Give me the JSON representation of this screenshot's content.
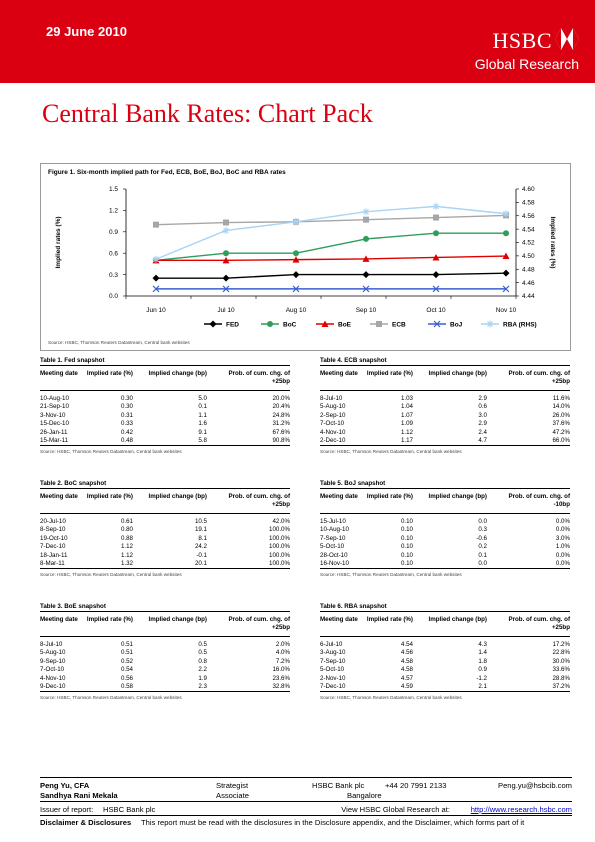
{
  "header": {
    "date": "29 June 2010",
    "brand": "HSBC",
    "unit": "Global Research",
    "logo_icon": "hsbc-hexagon-icon",
    "brand_color": "#db0011"
  },
  "page_title": "Central Bank Rates: Chart Pack",
  "figure": {
    "title": "Figure 1. Six-month implied path for Fed, ECB, BoE, BoJ, BoC and RBA rates",
    "source": "Source: HSBC, Thomson Reuters Datastream, Central bank websites",
    "chart_data": {
      "type": "line",
      "categories": [
        "Jun 10",
        "Jul 10",
        "Aug 10",
        "Sep 10",
        "Oct 10",
        "Nov 10"
      ],
      "ylabel": "Implied rates (%)",
      "ylabel_right": "Implied rates (%)",
      "ylim": [
        0,
        1.5
      ],
      "yticks": [
        "0.0",
        "0.3",
        "0.6",
        "0.9",
        "1.2",
        "1.5"
      ],
      "ylim_right": [
        4.44,
        4.6
      ],
      "yticks_right": [
        "4.44",
        "4.46",
        "4.48",
        "4.50",
        "4.52",
        "4.54",
        "4.56",
        "4.58",
        "4.60"
      ],
      "grid": false,
      "legend_position": "bottom",
      "series": [
        {
          "name": "FED",
          "color": "#000000",
          "marker": "diamond",
          "axis": "left",
          "values": [
            0.25,
            0.25,
            0.3,
            0.3,
            0.3,
            0.32
          ]
        },
        {
          "name": "BoC",
          "color": "#2e9e5b",
          "marker": "circle",
          "axis": "left",
          "values": [
            0.5,
            0.6,
            0.6,
            0.8,
            0.88,
            0.88
          ]
        },
        {
          "name": "BoE",
          "color": "#e00000",
          "marker": "triangle",
          "axis": "left",
          "values": [
            0.5,
            0.5,
            0.51,
            0.52,
            0.54,
            0.56
          ]
        },
        {
          "name": "ECB",
          "color": "#a6a6a6",
          "marker": "square",
          "axis": "left",
          "values": [
            1.0,
            1.03,
            1.04,
            1.07,
            1.1,
            1.13
          ]
        },
        {
          "name": "BoJ",
          "color": "#3a5fcd",
          "marker": "x",
          "axis": "left",
          "values": [
            0.1,
            0.1,
            0.1,
            0.1,
            0.1,
            0.1
          ]
        },
        {
          "name": "RBA (RHS)",
          "color": "#a9d4f5",
          "marker": "star",
          "axis": "right",
          "values": [
            4.495,
            4.538,
            4.551,
            4.566,
            4.574,
            4.563
          ]
        }
      ]
    }
  },
  "tables": [
    {
      "title": "Table 1. Fed snapshot",
      "headers": [
        "Meeting date",
        "Implied rate (%)",
        "Implied change (bp)",
        "Prob. of cum. chg. of +25bp"
      ],
      "rows": [
        [
          "10-Aug-10",
          "0.30",
          "5.0",
          "20.0%"
        ],
        [
          "21-Sep-10",
          "0.30",
          "0.1",
          "20.4%"
        ],
        [
          "3-Nov-10",
          "0.31",
          "1.1",
          "24.8%"
        ],
        [
          "15-Dec-10",
          "0.33",
          "1.6",
          "31.2%"
        ],
        [
          "26-Jan-11",
          "0.42",
          "9.1",
          "67.6%"
        ],
        [
          "15-Mar-11",
          "0.48",
          "5.8",
          "90.8%"
        ]
      ],
      "source": "Source: HSBC, Thomson Reuters Datastream, Central bank websites"
    },
    {
      "title": "Table 4. ECB snapshot",
      "headers": [
        "Meeting date",
        "Implied rate (%)",
        "Implied change (bp)",
        "Prob. of cum. chg. of +25bp"
      ],
      "rows": [
        [
          "8-Jul-10",
          "1.03",
          "2.9",
          "11.6%"
        ],
        [
          "5-Aug-10",
          "1.04",
          "0.6",
          "14.0%"
        ],
        [
          "2-Sep-10",
          "1.07",
          "3.0",
          "26.0%"
        ],
        [
          "7-Oct-10",
          "1.09",
          "2.9",
          "37.6%"
        ],
        [
          "4-Nov-10",
          "1.12",
          "2.4",
          "47.2%"
        ],
        [
          "2-Dec-10",
          "1.17",
          "4.7",
          "66.0%"
        ]
      ],
      "source": "Source: HSBC, Thomson Reuters Datastream, Central bank websites"
    },
    {
      "title": "Table 2. BoC snapshot",
      "headers": [
        "Meeting date",
        "Implied rate (%)",
        "Implied change (bp)",
        "Prob. of cum. chg. of +25bp"
      ],
      "rows": [
        [
          "20-Jul-10",
          "0.61",
          "10.5",
          "42.0%"
        ],
        [
          "8-Sep-10",
          "0.80",
          "19.1",
          "100.0%"
        ],
        [
          "19-Oct-10",
          "0.88",
          "8.1",
          "100.0%"
        ],
        [
          "7-Dec-10",
          "1.12",
          "24.2",
          "100.0%"
        ],
        [
          "18-Jan-11",
          "1.12",
          "-0.1",
          "100.0%"
        ],
        [
          "8-Mar-11",
          "1.32",
          "20.1",
          "100.0%"
        ]
      ],
      "source": "Source: HSBC, Thomson Reuters Datastream, Central bank websites"
    },
    {
      "title": "Table 5. BoJ snapshot",
      "headers": [
        "Meeting date",
        "Implied rate (%)",
        "Implied change (bp)",
        "Prob. of cum. chg. of -10bp"
      ],
      "rows": [
        [
          "15-Jul-10",
          "0.10",
          "0.0",
          "0.0%"
        ],
        [
          "10-Aug-10",
          "0.10",
          "0.3",
          "0.0%"
        ],
        [
          "7-Sep-10",
          "0.10",
          "-0.6",
          "3.0%"
        ],
        [
          "5-Oct-10",
          "0.10",
          "0.2",
          "1.0%"
        ],
        [
          "28-Oct-10",
          "0.10",
          "0.1",
          "0.0%"
        ],
        [
          "16-Nov-10",
          "0.10",
          "0.0",
          "0.0%"
        ]
      ],
      "source": "Source: HSBC, Thomson Reuters Datastream, Central bank websites"
    },
    {
      "title": "Table 3. BoE snapshot",
      "headers": [
        "Meeting date",
        "Implied rate (%)",
        "Implied change (bp)",
        "Prob. of cum. chg. of +25bp"
      ],
      "rows": [
        [
          "8-Jul-10",
          "0.51",
          "0.5",
          "2.0%"
        ],
        [
          "5-Aug-10",
          "0.51",
          "0.5",
          "4.0%"
        ],
        [
          "9-Sep-10",
          "0.52",
          "0.8",
          "7.2%"
        ],
        [
          "7-Oct-10",
          "0.54",
          "2.2",
          "16.0%"
        ],
        [
          "4-Nov-10",
          "0.56",
          "1.9",
          "23.6%"
        ],
        [
          "9-Dec-10",
          "0.58",
          "2.3",
          "32.8%"
        ]
      ],
      "source": "Source: HSBC, Thomson Reuters Datastream, Central bank websites"
    },
    {
      "title": "Table 6. RBA snapshot",
      "headers": [
        "Meeting date",
        "Implied rate (%)",
        "Implied change (bp)",
        "Prob. of cum. chg. of +25bp"
      ],
      "rows": [
        [
          "6-Jul-10",
          "4.54",
          "4.3",
          "17.2%"
        ],
        [
          "3-Aug-10",
          "4.56",
          "1.4",
          "22.8%"
        ],
        [
          "7-Sep-10",
          "4.58",
          "1.8",
          "30.0%"
        ],
        [
          "5-Oct-10",
          "4.58",
          "0.9",
          "33.6%"
        ],
        [
          "2-Nov-10",
          "4.57",
          "-1.2",
          "28.8%"
        ],
        [
          "7-Dec-10",
          "4.59",
          "2.1",
          "37.2%"
        ]
      ],
      "source": "Source: HSBC, Thomson Reuters Datastream, Central bank websites"
    }
  ],
  "footer": {
    "analyst1_name": "Peng Yu, CFA",
    "analyst1_role": "Strategist",
    "analyst1_company": "HSBC Bank plc",
    "analyst1_phone": "+44 20 7991 2133",
    "analyst1_email": "Peng.yu@hsbcib.com",
    "analyst2_name": "Sandhya Rani Mekala",
    "analyst2_role": "Associate",
    "analyst2_location": "Bangalore",
    "issuer_label": "Issuer of report:",
    "issuer_value": "HSBC Bank plc",
    "view_text": "View HSBC Global Research at:",
    "view_link": "http://www.research.hsbc.com",
    "disclaimer_label": "Disclaimer & Disclosures",
    "disclaimer_text": "This report must be read with the disclosures in the Disclosure appendix, and the Disclaimer, which forms part of it"
  }
}
